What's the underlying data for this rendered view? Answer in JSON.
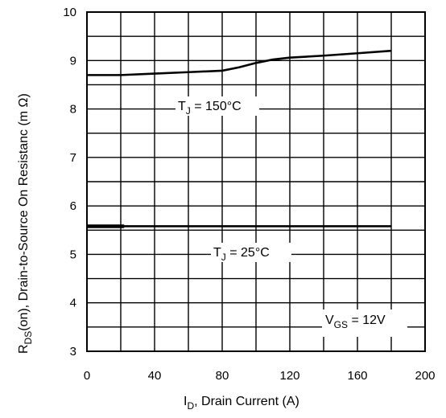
{
  "chart_data": {
    "type": "line",
    "xlabel_main": "I",
    "xlabel_sub": "D",
    "xlabel_rest": ", Drain Current (A)",
    "ylabel_main": "R",
    "ylabel_sub": "DS",
    "ylabel_rest": "(on),  Drain-to-Source On Resistanc (m Ω)",
    "xlim": [
      0,
      200
    ],
    "ylim": [
      3,
      10
    ],
    "x_ticks": [
      0,
      40,
      80,
      120,
      160,
      200
    ],
    "y_ticks": [
      3,
      4,
      5,
      6,
      7,
      8,
      9,
      10
    ],
    "grid": true,
    "series": [
      {
        "name": "T_J = 150°C",
        "x": [
          0,
          20,
          40,
          60,
          80,
          90,
          100,
          110,
          120,
          140,
          160,
          180
        ],
        "y": [
          8.7,
          8.7,
          8.73,
          8.76,
          8.79,
          8.86,
          8.95,
          9.02,
          9.06,
          9.1,
          9.15,
          9.2
        ]
      },
      {
        "name": "T_J = 25°C",
        "x": [
          0,
          20,
          40,
          60,
          80,
          100,
          120,
          140,
          160,
          180
        ],
        "y": [
          5.58,
          5.58,
          5.58,
          5.58,
          5.58,
          5.58,
          5.58,
          5.58,
          5.58,
          5.58
        ]
      }
    ],
    "annotations": [
      {
        "main": "T",
        "sub": "J",
        "rest": " = 150°C"
      },
      {
        "main": "T",
        "sub": "J",
        "rest": " = 25°C"
      },
      {
        "main": "V",
        "sub": "GS",
        "rest": " = 12V"
      }
    ]
  }
}
